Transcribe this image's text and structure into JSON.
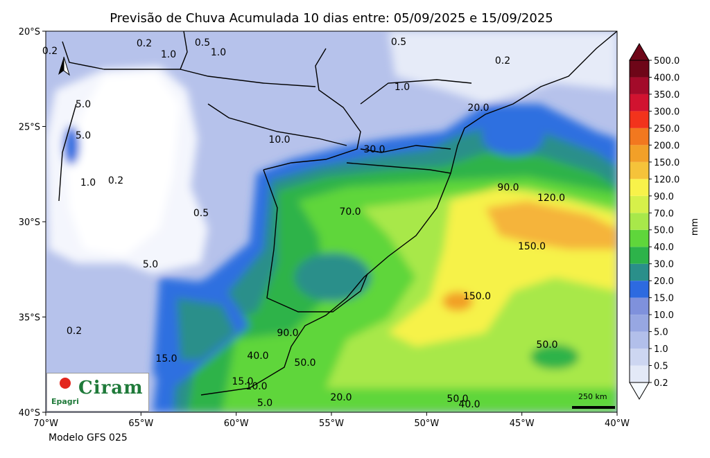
{
  "title": "Previsão de Chuva Acumulada 10 dias entre: 05/09/2025 e 15/09/2025",
  "model": "Modelo GFS 025",
  "map": {
    "lat_ticks": [
      "20°S",
      "25°S",
      "30°S",
      "35°S",
      "40°S"
    ],
    "lon_ticks": [
      "70°W",
      "65°W",
      "60°W",
      "55°W",
      "50°W",
      "45°W",
      "40°W"
    ],
    "extent": {
      "lon_min": -70,
      "lon_max": -40,
      "lat_min": -40,
      "lat_max": -20
    }
  },
  "colorbar": {
    "unit": "mm",
    "levels": [
      "0.2",
      "0.5",
      "1.0",
      "5.0",
      "10.0",
      "15.0",
      "20.0",
      "30.0",
      "40.0",
      "50.0",
      "70.0",
      "90.0",
      "120.0",
      "150.0",
      "200.0",
      "250.0",
      "300.0",
      "350.0",
      "400.0",
      "500.0"
    ],
    "colors": [
      "#f7fbff",
      "#e3e9f7",
      "#cdd6f1",
      "#b2bfea",
      "#97a7e2",
      "#7f91dc",
      "#2d6ae0",
      "#2a8f8a",
      "#2db34a",
      "#5fd63b",
      "#a8e84a",
      "#d6f04a",
      "#f8f24a",
      "#f5c33a",
      "#f2a028",
      "#f2781f",
      "#f2331c",
      "#d11330",
      "#a30b2a",
      "#6e0618"
    ]
  },
  "contour_labels": [
    "0.2",
    "1.0",
    "0.5",
    "0.2",
    "0.5",
    "0.2",
    "1.0",
    "10.0",
    "20.0",
    "30.0",
    "90.0",
    "120.0",
    "70.0",
    "150.0",
    "150.0",
    "5.0",
    "90.0",
    "40.0",
    "50.0",
    "15.0",
    "15.0",
    "10.0",
    "5.0",
    "20.0",
    "50.0",
    "40.0",
    "50.0",
    "0.2",
    "5.0",
    "1.0",
    "0.2",
    "0.5",
    "1.0",
    "5.0"
  ],
  "logo": {
    "name": "Ciram",
    "org": "Epagri"
  },
  "scale": {
    "label": "250 km"
  }
}
